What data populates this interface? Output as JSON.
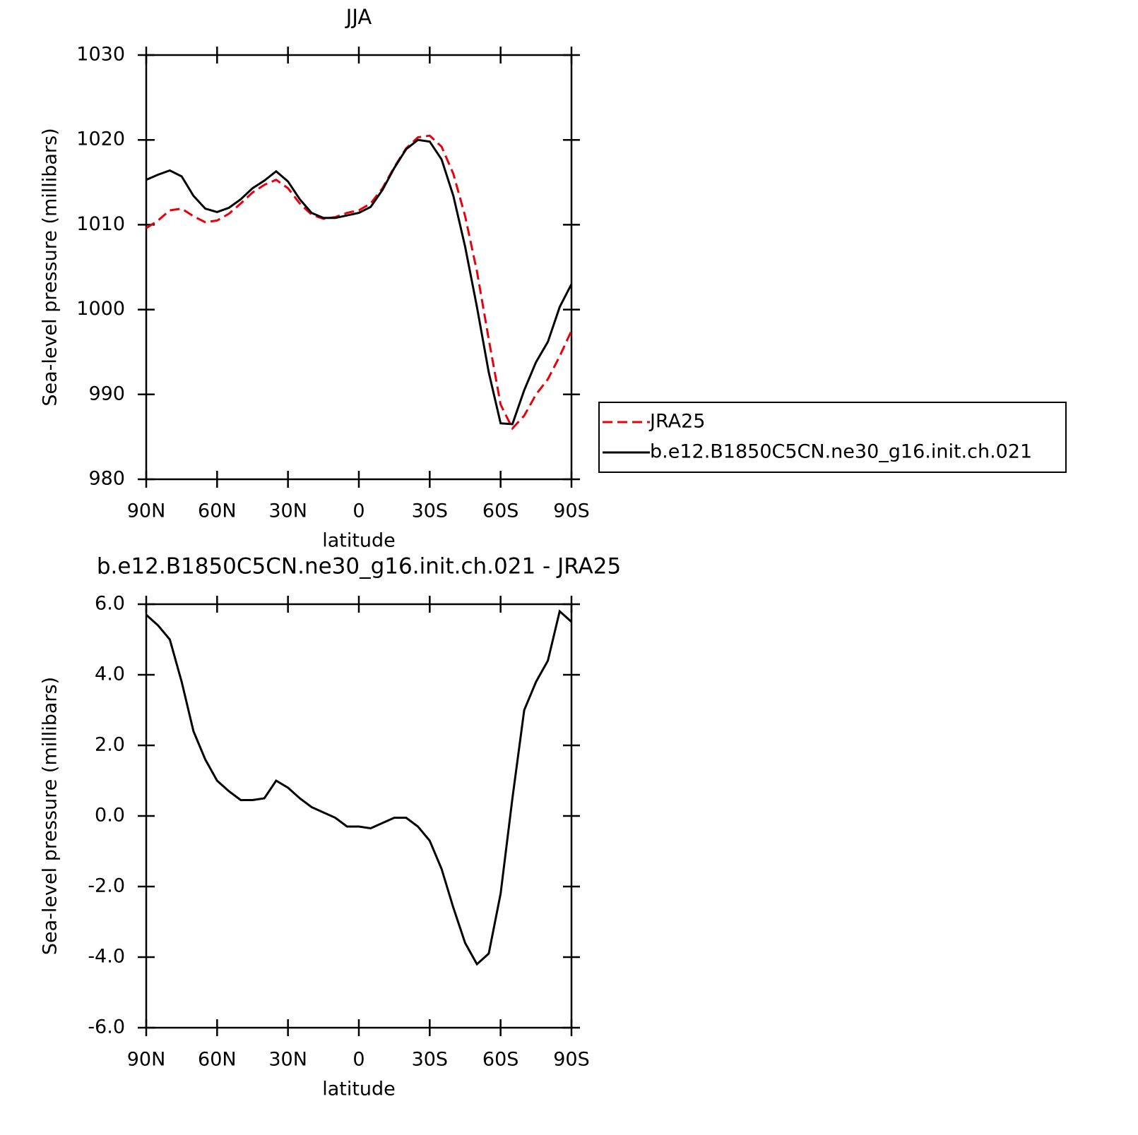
{
  "chart_data": [
    {
      "type": "line",
      "title": "JJA",
      "x_label": "latitude",
      "y_label": "Sea-level pressure (millibars)",
      "x": [
        90,
        85,
        80,
        75,
        70,
        65,
        60,
        55,
        50,
        45,
        40,
        35,
        30,
        25,
        20,
        15,
        10,
        5,
        0,
        -5,
        -10,
        -15,
        -20,
        -25,
        -30,
        -35,
        -40,
        -45,
        -50,
        -55,
        -60,
        -65,
        -70,
        -75,
        -80,
        -85,
        -90
      ],
      "series": [
        {
          "name": "JRA25",
          "color": "#e8000b",
          "dash": true,
          "values": [
            1009.6,
            1010.5,
            1011.7,
            1011.9,
            1011.0,
            1010.3,
            1010.5,
            1011.3,
            1012.5,
            1013.8,
            1014.7,
            1015.3,
            1014.3,
            1012.5,
            1011.2,
            1010.7,
            1010.9,
            1011.4,
            1011.7,
            1012.5,
            1014.3,
            1016.8,
            1019.0,
            1020.3,
            1020.5,
            1019.2,
            1016.0,
            1011.0,
            1004.5,
            996.5,
            988.8,
            986.0,
            987.5,
            990.0,
            991.8,
            994.5,
            997.5
          ]
        },
        {
          "name": "b.e12.B1850C5CN.ne30_g16.init.ch.021",
          "color": "#000000",
          "dash": false,
          "values": [
            1015.3,
            1015.9,
            1016.4,
            1015.7,
            1013.4,
            1011.9,
            1011.5,
            1012.0,
            1013.0,
            1014.3,
            1015.2,
            1016.3,
            1015.1,
            1013.0,
            1011.4,
            1010.8,
            1010.8,
            1011.1,
            1011.4,
            1012.1,
            1014.1,
            1016.7,
            1018.9,
            1020.0,
            1019.8,
            1017.7,
            1013.4,
            1007.4,
            1000.3,
            992.6,
            986.6,
            986.5,
            990.5,
            993.8,
            996.2,
            1000.3,
            1003.0
          ]
        }
      ],
      "xlim": [
        90,
        -90
      ],
      "xticks": [
        {
          "value": 90,
          "label": "90N"
        },
        {
          "value": 60,
          "label": "60N"
        },
        {
          "value": 30,
          "label": "30N"
        },
        0,
        {
          "value": -30,
          "label": "30S"
        },
        {
          "value": -60,
          "label": "60S"
        },
        {
          "value": -90,
          "label": "90S"
        }
      ],
      "ylim": [
        980,
        1030
      ],
      "yticks": [
        980,
        990,
        1000,
        1010,
        1020,
        1030
      ],
      "legend": "right"
    },
    {
      "type": "line",
      "title": "b.e12.B1850C5CN.ne30_g16.init.ch.021 - JRA25",
      "x_label": "latitude",
      "y_label": "Sea-level pressure (millibars)",
      "x": [
        90,
        85,
        80,
        75,
        70,
        65,
        60,
        55,
        50,
        45,
        40,
        35,
        30,
        25,
        20,
        15,
        10,
        5,
        0,
        -5,
        -10,
        -15,
        -20,
        -25,
        -30,
        -35,
        -40,
        -45,
        -50,
        -55,
        -60,
        -65,
        -70,
        -75,
        -80,
        -85,
        -90
      ],
      "series": [
        {
          "color": "#000000",
          "dash": false,
          "values": [
            5.7,
            5.4,
            5.0,
            3.8,
            2.4,
            1.6,
            1.0,
            0.7,
            0.45,
            0.45,
            0.5,
            1.0,
            0.8,
            0.5,
            0.25,
            0.1,
            -0.05,
            -0.3,
            -0.3,
            -0.35,
            -0.2,
            -0.05,
            -0.05,
            -0.3,
            -0.7,
            -1.5,
            -2.6,
            -3.6,
            -4.2,
            -3.9,
            -2.2,
            0.5,
            3.0,
            3.8,
            4.4,
            5.8,
            5.5
          ]
        }
      ],
      "xlim": [
        90,
        -90
      ],
      "xticks": [
        {
          "value": 90,
          "label": "90N"
        },
        {
          "value": 60,
          "label": "60N"
        },
        {
          "value": 30,
          "label": "30N"
        },
        0,
        {
          "value": -30,
          "label": "30S"
        },
        {
          "value": -60,
          "label": "60S"
        },
        {
          "value": -90,
          "label": "90S"
        }
      ],
      "ylim": [
        -6,
        6
      ],
      "yticks": [
        {
          "value": -6,
          "label": "-6.0"
        },
        {
          "value": -4,
          "label": "-4.0"
        },
        {
          "value": -2,
          "label": "-2.0"
        },
        {
          "value": 0,
          "label": "0.0"
        },
        {
          "value": 2,
          "label": "2.0"
        },
        {
          "value": 4,
          "label": "4.0"
        },
        {
          "value": 6,
          "label": "6.0"
        }
      ]
    }
  ]
}
